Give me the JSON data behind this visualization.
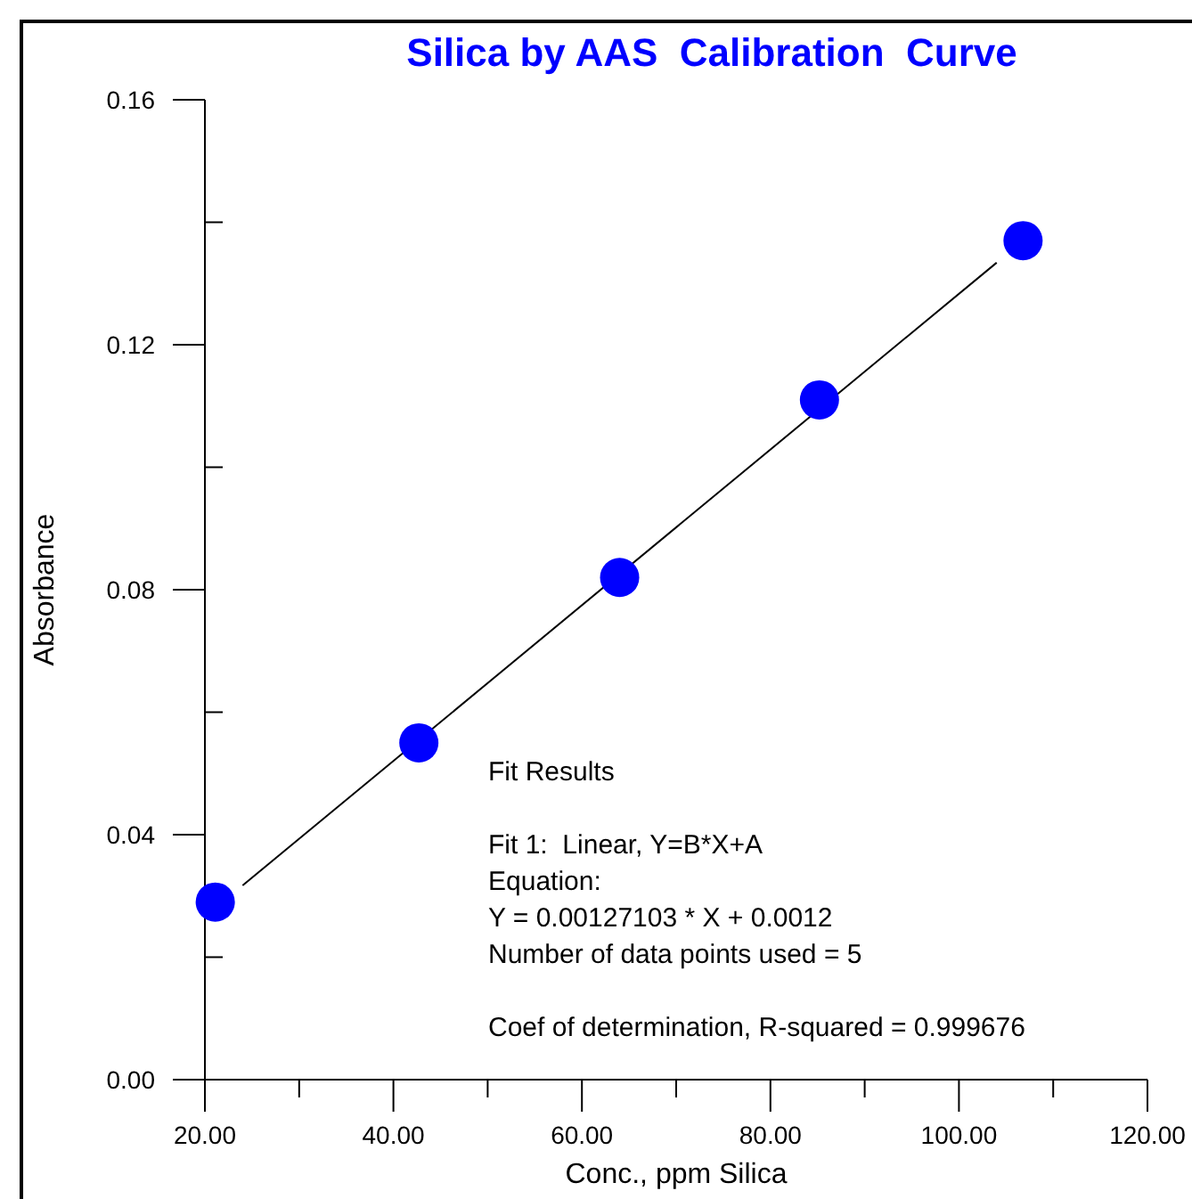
{
  "chart_data": {
    "type": "scatter",
    "title": "Silica by AAS  Calibration  Curve",
    "xlabel": "Conc., ppm Silica",
    "ylabel": "Absorbance",
    "x": [
      21.1,
      42.7,
      64.0,
      85.2,
      106.8
    ],
    "series": [
      {
        "color": "#0000ff",
        "marker": "circle",
        "values": [
          0.029,
          0.055,
          0.082,
          0.111,
          0.137
        ]
      },
      {
        "type": "line",
        "color": "#000000",
        "marker": "none",
        "x": [
          24,
          104
        ],
        "values": [
          0.0317,
          0.1334
        ]
      }
    ],
    "xlim": [
      20,
      120
    ],
    "ylim": [
      0,
      0.16
    ],
    "xticks": [
      {
        "value": 20,
        "label": "20.00"
      },
      {
        "value": 30,
        "label": null
      },
      {
        "value": 40,
        "label": "40.00"
      },
      {
        "value": 50,
        "label": null
      },
      {
        "value": 60,
        "label": "60.00"
      },
      {
        "value": 70,
        "label": null
      },
      {
        "value": 80,
        "label": "80.00"
      },
      {
        "value": 90,
        "label": null
      },
      {
        "value": 100,
        "label": "100.00"
      },
      {
        "value": 110,
        "label": null
      },
      {
        "value": 120,
        "label": "120.00"
      }
    ],
    "yticks": [
      {
        "value": 0,
        "label": "0.00"
      },
      {
        "value": 0.02,
        "label": null
      },
      {
        "value": 0.04,
        "label": "0.04"
      },
      {
        "value": 0.06,
        "label": null
      },
      {
        "value": 0.08,
        "label": "0.08"
      },
      {
        "value": 0.1,
        "label": null
      },
      {
        "value": 0.12,
        "label": "0.12"
      },
      {
        "value": 0.14,
        "label": null
      },
      {
        "value": 0.16,
        "label": "0.16"
      }
    ],
    "grid": false,
    "annotations": [
      "Fit Results",
      "Fit 1:  Linear, Y=B*X+A",
      "Equation:",
      "Y = 0.00127103 * X + 0.0012",
      "Number of data points used = 5",
      "Coef of determination, R-squared = 0.999676"
    ]
  }
}
